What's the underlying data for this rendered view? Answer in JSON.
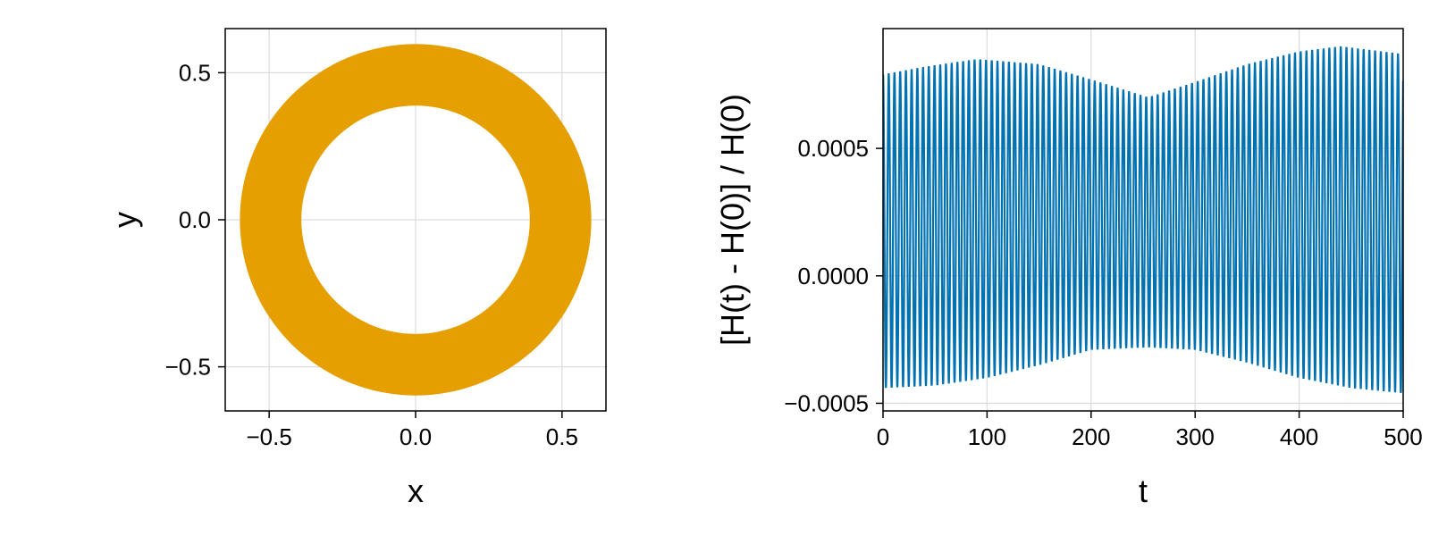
{
  "chart_data": [
    {
      "type": "scatter",
      "xlabel": "x",
      "ylabel": "y",
      "xlim": [
        -0.65,
        0.65
      ],
      "ylim": [
        -0.65,
        0.65
      ],
      "xticks": [
        -0.5,
        0.0,
        0.5
      ],
      "yticks": [
        -0.5,
        0.0,
        0.5
      ],
      "xtick_labels": [
        "−0.5",
        "0.0",
        "0.5"
      ],
      "ytick_labels": [
        "−0.5",
        "0.0",
        "0.5"
      ],
      "grid": true,
      "color": "#E69F00",
      "annulus": {
        "inner_radius": 0.39,
        "outer_radius": 0.6,
        "center": [
          0,
          0
        ]
      }
    },
    {
      "type": "line",
      "xlabel": "t",
      "ylabel": "[H(t) - H(0)] / H(0)",
      "xlim": [
        0,
        500
      ],
      "ylim": [
        -0.00053,
        0.00097
      ],
      "xticks": [
        0,
        100,
        200,
        300,
        400,
        500
      ],
      "yticks": [
        -0.0005,
        0.0,
        0.0005
      ],
      "xtick_labels": [
        "0",
        "100",
        "200",
        "300",
        "400",
        "500"
      ],
      "ytick_labels": [
        "−0.0005",
        "0.0000",
        "0.0005"
      ],
      "grid": true,
      "color": "#0072B2",
      "oscillation_period": 5.5,
      "upper_envelope": {
        "t": [
          0,
          40,
          90,
          150,
          200,
          255,
          300,
          350,
          400,
          440,
          500
        ],
        "value": [
          0.00079,
          0.00082,
          0.00085,
          0.00083,
          0.00077,
          0.0007,
          0.00076,
          0.00083,
          0.00088,
          0.0009,
          0.00087
        ]
      },
      "lower_envelope": {
        "t": [
          0,
          50,
          100,
          150,
          200,
          255,
          300,
          350,
          400,
          450,
          500
        ],
        "value": [
          -0.00044,
          -0.00043,
          -0.0004,
          -0.00035,
          -0.00029,
          -0.00028,
          -0.00029,
          -0.00034,
          -0.0004,
          -0.00044,
          -0.00046
        ]
      }
    }
  ]
}
